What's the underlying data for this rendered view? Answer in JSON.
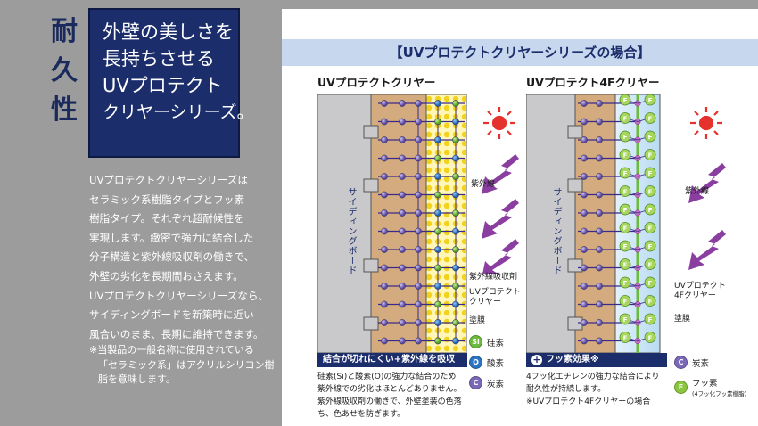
{
  "left": {
    "kanji": [
      "耐",
      "久",
      "性"
    ],
    "headline": [
      "外壁の美しさを",
      "長持ちさせる",
      "UVプロテクト",
      "クリヤーシリーズ。"
    ],
    "body": [
      "UVプロテクトクリヤーシリーズは",
      "セラミック系樹脂タイプとフッ素",
      "樹脂タイプ。それぞれ超耐候性を",
      "実現します。緻密で強力に結合した",
      "分子構造と紫外線吸収剤の働きで、",
      "外壁の劣化を長期間おさえます。",
      "UVプロテクトクリヤーシリーズなら、",
      "サイディングボードを新築時に近い",
      "風合いのまま、長期に維持できます。"
    ],
    "note": [
      "※当製品の一般名称に使用されている",
      "「セラミック系」はアクリルシリコン樹",
      "脂を意味します。"
    ]
  },
  "panel": {
    "header": "【UVプロテクトクリヤーシリーズの場合】",
    "left_diagram": {
      "title": "UVプロテクトクリヤー",
      "siding": "サイディングボード",
      "uv": "紫外線",
      "absorber": "紫外線吸収剤",
      "coat_label_1": "UVプロテクト",
      "coat_label_2": "クリヤー",
      "film": "塗膜",
      "effect": "結合が切れにくい+紫外線を吸収",
      "desc": [
        "硅素(Si)と酸素(O)の強力な結合のため",
        "紫外線での劣化はほとんどありません。",
        "紫外線吸収剤の働きで、外壁塗装の色落",
        "ち、色あせを防ぎます。"
      ],
      "legend": [
        {
          "symbol": "Si",
          "label": "硅素",
          "color": "#6cbb3c"
        },
        {
          "symbol": "O",
          "label": "酸素",
          "color": "#2a74c4"
        },
        {
          "symbol": "C",
          "label": "炭素",
          "color": "#7a68b8"
        }
      ]
    },
    "right_diagram": {
      "title": "UVプロテクト4Fクリヤー",
      "siding": "サイディングボード",
      "uv": "紫外線",
      "coat_label_1": "UVプロテクト",
      "coat_label_2": "4Fクリヤー",
      "film": "塗膜",
      "effect": "フッ素効果※",
      "desc": [
        "4フッ化エチレンの強力な結合により",
        "耐久性が持続します。",
        "※UVプロテクト4Fクリヤーの場合"
      ],
      "legend": [
        {
          "symbol": "C",
          "label": "炭素",
          "color": "#7a68b8"
        },
        {
          "symbol": "F",
          "label": "フッ素",
          "sub": "(4フッ化フッ素樹脂)",
          "color": "#8cc63e"
        }
      ]
    }
  },
  "colors": {
    "navy": "#1b2d6b",
    "brick": "#c9a27a",
    "uv_purple": "#8a3fa0",
    "sun_red": "#e5322d"
  }
}
